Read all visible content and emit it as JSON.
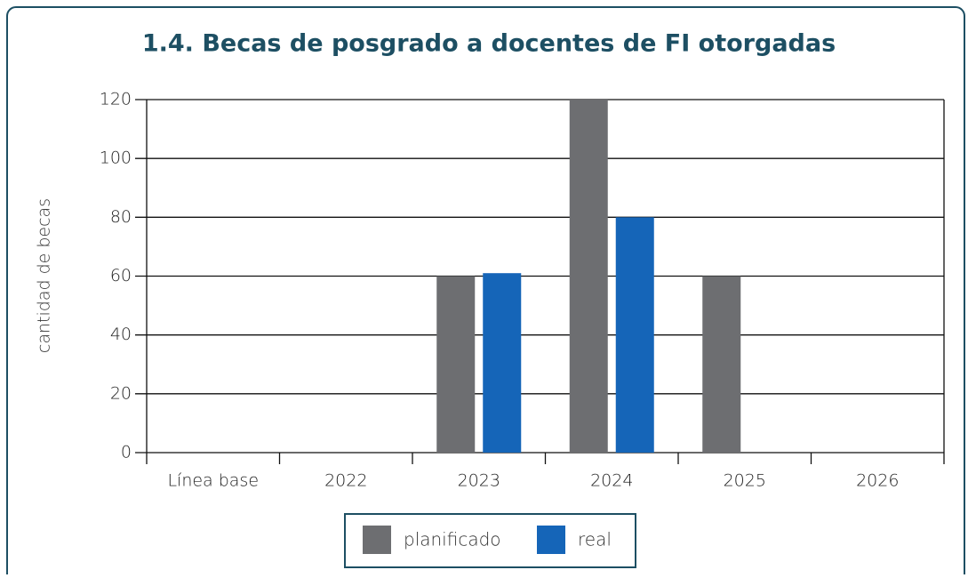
{
  "chart_data": {
    "type": "bar",
    "title": "1.4. Becas de posgrado a docentes de FI otorgadas",
    "y_label": "cantidad de becas",
    "categories": [
      "Línea base",
      "2022",
      "2023",
      "2024",
      "2025",
      "2026"
    ],
    "series": [
      {
        "name": "planificado",
        "color": "#6d6e71",
        "values": [
          null,
          null,
          60,
          120,
          60,
          null
        ]
      },
      {
        "name": "real",
        "color": "#1565b8",
        "values": [
          null,
          null,
          61,
          80,
          null,
          null
        ]
      }
    ],
    "ylim": [
      0,
      120
    ],
    "yticks": [
      0,
      20,
      40,
      60,
      80,
      100,
      120
    ],
    "grid": true
  }
}
